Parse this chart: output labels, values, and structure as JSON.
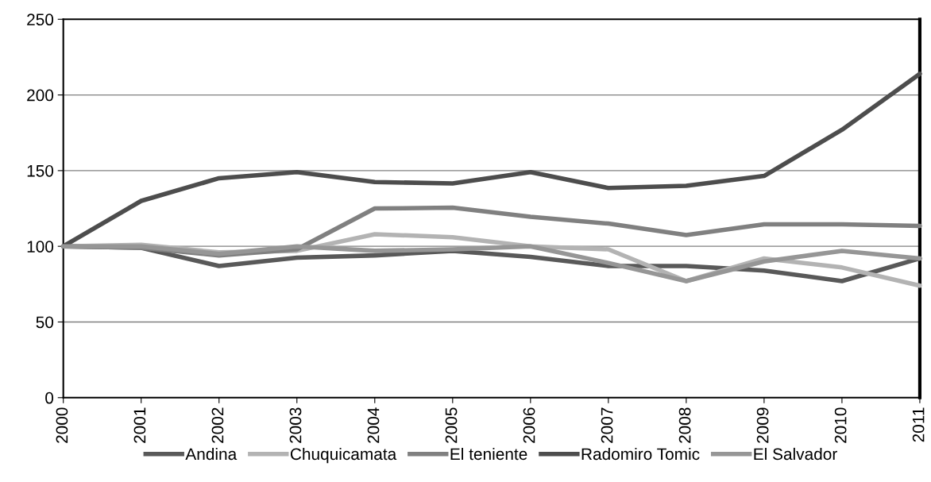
{
  "chart_data": {
    "type": "line",
    "categories": [
      "2000",
      "2001",
      "2002",
      "2003",
      "2004",
      "2005",
      "2006",
      "2007",
      "2008",
      "2009",
      "2010",
      "2011"
    ],
    "ylim": [
      0,
      250
    ],
    "yticks": [
      0,
      50,
      100,
      150,
      200,
      250
    ],
    "grid": "y",
    "legend": "bottom",
    "marker": "none",
    "line_style": "solid",
    "series": [
      {
        "name": "Andina",
        "color": "#595959",
        "values": [
          100,
          99,
          87,
          92.5,
          94,
          97,
          93,
          87,
          87,
          84,
          77,
          92
        ]
      },
      {
        "name": "Chuquicamata",
        "color": "#b3b3b3",
        "values": [
          100,
          101,
          96,
          97,
          108,
          106,
          100,
          98,
          77,
          92,
          86,
          74
        ]
      },
      {
        "name": "El teniente",
        "color": "#808080",
        "values": [
          100,
          99,
          94,
          98,
          125,
          125.5,
          119.5,
          115,
          107.5,
          114.5,
          114.5,
          113.5
        ]
      },
      {
        "name": "Radomiro Tomic",
        "color": "#4d4d4d",
        "values": [
          100,
          130,
          145,
          149,
          142.5,
          141.5,
          149,
          138.5,
          140,
          146.5,
          177,
          214
        ]
      },
      {
        "name": "El Salvador",
        "color": "#969696",
        "values": [
          100,
          100,
          95,
          100,
          97,
          98,
          100,
          89,
          77,
          90,
          97,
          92
        ]
      }
    ]
  }
}
